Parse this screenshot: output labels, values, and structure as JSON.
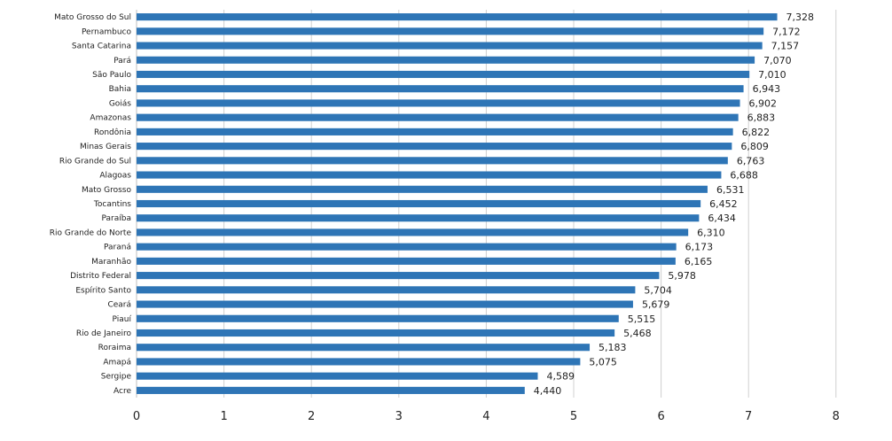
{
  "chart_data": {
    "type": "bar",
    "orientation": "horizontal",
    "title": "",
    "xlabel": "",
    "ylabel": "",
    "xlim": [
      0,
      8
    ],
    "x_ticks": [
      0,
      1,
      2,
      3,
      4,
      5,
      6,
      7,
      8
    ],
    "grid": "vertical gridlines",
    "legend": "none",
    "bar_color": "#2E75B6",
    "categories": [
      "Mato Grosso do Sul",
      "Pernambuco",
      "Santa Catarina",
      "Pará",
      "São Paulo",
      "Bahia",
      "Goiás",
      "Amazonas",
      "Rondônia",
      "Minas Gerais",
      "Rio Grande do Sul",
      "Alagoas",
      "Mato Grosso",
      "Tocantins",
      "Paraíba",
      "Rio Grande do Norte",
      "Paraná",
      "Maranhão",
      "Distrito Federal",
      "Espírito Santo",
      "Ceará",
      "Piauí",
      "Rio de Janeiro",
      "Roraima",
      "Amapá",
      "Sergipe",
      "Acre"
    ],
    "values": [
      7.328,
      7.172,
      7.157,
      7.07,
      7.01,
      6.943,
      6.902,
      6.883,
      6.822,
      6.809,
      6.763,
      6.688,
      6.531,
      6.452,
      6.434,
      6.31,
      6.173,
      6.165,
      5.978,
      5.704,
      5.679,
      5.515,
      5.468,
      5.183,
      5.075,
      4.589,
      4.44
    ],
    "value_labels": [
      "7,328",
      "7,172",
      "7,157",
      "7,070",
      "7,010",
      "6,943",
      "6,902",
      "6,883",
      "6,822",
      "6,809",
      "6,763",
      "6,688",
      "6,531",
      "6,452",
      "6,434",
      "6,310",
      "6,173",
      "6,165",
      "5,978",
      "5,704",
      "5,679",
      "5,515",
      "5,468",
      "5,183",
      "5,075",
      "4,589",
      "4,440"
    ]
  }
}
